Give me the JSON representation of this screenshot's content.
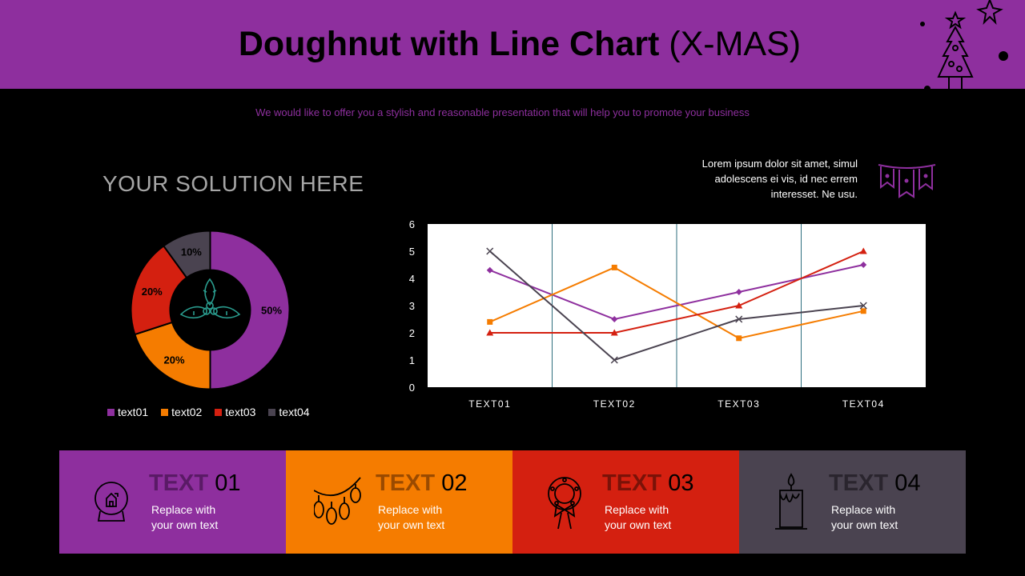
{
  "header": {
    "title_bold": "Doughnut with Line Chart",
    "title_light": "(X-MAS)",
    "subtitle": "We would like to offer you a stylish and reasonable presentation that will help you to promote your business"
  },
  "solution_title": "YOUR SOLUTION HERE",
  "lorem": "Lorem ipsum dolor sit amet, simul adolescens ei vis, id nec errem interesset. Ne usu.",
  "colors": {
    "purple": "#8e2f9e",
    "orange": "#f57c00",
    "red": "#d42010",
    "gray": "#4a4350"
  },
  "chart_data": [
    {
      "type": "pie",
      "categories": [
        "text01",
        "text02",
        "text03",
        "text04"
      ],
      "values": [
        50,
        20,
        20,
        10
      ],
      "labels": [
        "50%",
        "20%",
        "20%",
        "10%"
      ],
      "colors": [
        "#8e2f9e",
        "#f57c00",
        "#d42010",
        "#4a4350"
      ],
      "legend": "bottom"
    },
    {
      "type": "line",
      "categories": [
        "TEXT01",
        "TEXT02",
        "TEXT03",
        "TEXT04"
      ],
      "ylim": [
        0,
        6
      ],
      "yticks": [
        "0",
        "1",
        "2",
        "3",
        "4",
        "5",
        "6"
      ],
      "series": [
        {
          "values": [
            4.3,
            2.5,
            3.5,
            4.5
          ],
          "color": "#8e2f9e",
          "marker": "diamond"
        },
        {
          "values": [
            2.4,
            4.4,
            1.8,
            2.8
          ],
          "color": "#f57c00",
          "marker": "square"
        },
        {
          "values": [
            2.0,
            2.0,
            3.0,
            5.0
          ],
          "color": "#d42010",
          "marker": "triangle"
        },
        {
          "values": [
            5.0,
            1.0,
            2.5,
            3.0
          ],
          "color": "#4a4350",
          "marker": "x"
        }
      ]
    }
  ],
  "cards": [
    {
      "word": "TEXT",
      "num": "01",
      "text1": "Replace with",
      "text2": "your own text",
      "color": "#8e2f9e",
      "title_color": "#5a1a66"
    },
    {
      "word": "TEXT",
      "num": "02",
      "text1": "Replace with",
      "text2": "your own text",
      "color": "#f57c00",
      "title_color": "#9a4a00"
    },
    {
      "word": "TEXT",
      "num": "03",
      "text1": "Replace with",
      "text2": "your own text",
      "color": "#d42010",
      "title_color": "#7a1208"
    },
    {
      "word": "TEXT",
      "num": "04",
      "text1": "Replace with",
      "text2": "your own text",
      "color": "#4a4350",
      "title_color": "#2a252e"
    }
  ]
}
